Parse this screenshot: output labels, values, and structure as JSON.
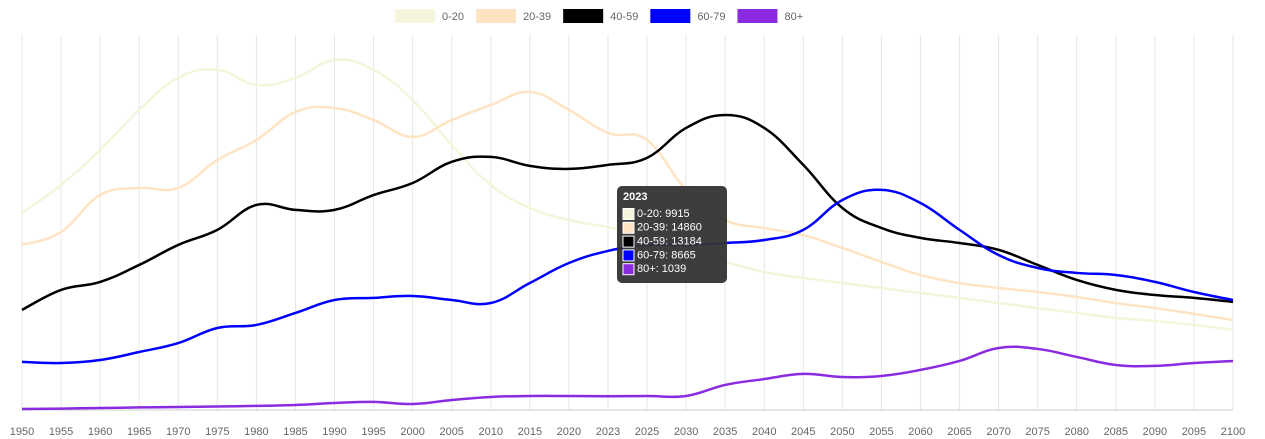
{
  "chart_data": {
    "type": "line",
    "categories": [
      "1950",
      "1955",
      "1960",
      "1965",
      "1970",
      "1975",
      "1980",
      "1985",
      "1990",
      "1995",
      "2000",
      "2005",
      "2010",
      "2015",
      "2020",
      "2023",
      "2025",
      "2030",
      "2035",
      "2040",
      "2045",
      "2050",
      "2055",
      "2060",
      "2065",
      "2070",
      "2075",
      "2080",
      "2085",
      "2090",
      "2095",
      "2100"
    ],
    "series": [
      {
        "name": "0-20",
        "color": "#f5f5dc",
        "values": [
          10660,
          12130,
          13970,
          16070,
          17750,
          18170,
          17380,
          17750,
          18690,
          18170,
          16590,
          14230,
          12130,
          10920,
          10290,
          9915,
          9500,
          8720,
          8090,
          7560,
          7250,
          6980,
          6720,
          6460,
          6200,
          5930,
          5670,
          5410,
          5150,
          4990,
          4780,
          4520
        ]
      },
      {
        "name": "20-39",
        "color": "#ffe4c4",
        "values": [
          8980,
          9660,
          11600,
          11970,
          11970,
          13440,
          14490,
          15960,
          16170,
          15540,
          14650,
          15540,
          16330,
          17010,
          16070,
          14860,
          14490,
          11870,
          10290,
          9870,
          9500,
          8820,
          8090,
          7400,
          6980,
          6720,
          6510,
          6250,
          5930,
          5670,
          5360,
          5040
        ]
      },
      {
        "name": "40-59",
        "color": "#000000",
        "values": [
          5570,
          6620,
          7040,
          7930,
          8980,
          9770,
          11080,
          10820,
          10820,
          11600,
          12230,
          13340,
          13600,
          13130,
          12970,
          13184,
          13550,
          15120,
          15800,
          15120,
          13180,
          10920,
          9870,
          9350,
          9080,
          8720,
          7930,
          7140,
          6620,
          6350,
          6200,
          5990
        ]
      },
      {
        "name": "60-79",
        "color": "#0000ff",
        "values": [
          2840,
          2780,
          2940,
          3360,
          3830,
          4620,
          4780,
          5410,
          6090,
          6200,
          6300,
          6090,
          5930,
          6980,
          8030,
          8665,
          8980,
          8980,
          9080,
          9240,
          9770,
          11340,
          11870,
          11180,
          9770,
          8450,
          7770,
          7510,
          7400,
          7040,
          6510,
          6090
        ]
      },
      {
        "name": "80+",
        "color": "#8a2be2",
        "values": [
          370,
          390,
          420,
          450,
          470,
          500,
          530,
          580,
          680,
          740,
          630,
          840,
          1000,
          1050,
          1050,
          1039,
          1050,
          1050,
          1630,
          1940,
          2210,
          2050,
          2100,
          2420,
          2890,
          3570,
          3520,
          3100,
          2680,
          2630,
          2780,
          2890
        ]
      }
    ],
    "ylim": [
      0,
      20000
    ],
    "grid": true,
    "legend": "top",
    "tooltip": {
      "title": "2023",
      "items": [
        "0-20: 9915",
        "20-39: 14860",
        "40-59: 13184",
        "60-79: 8665",
        "80+: 1039"
      ]
    }
  }
}
